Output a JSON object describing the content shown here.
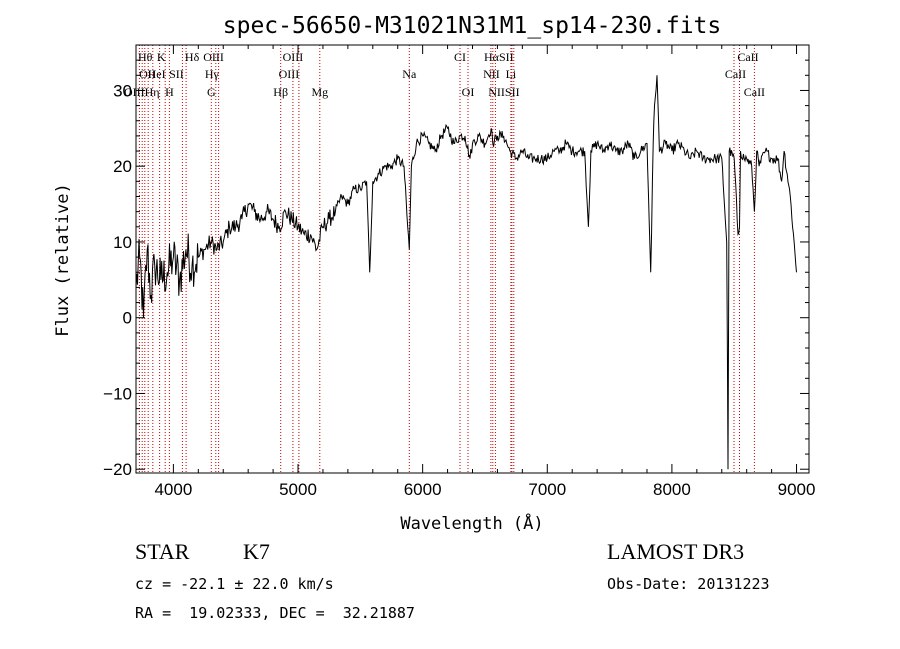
{
  "chart_data": {
    "type": "line",
    "title": "spec-56650-M31021N31M1_sp14-230.fits",
    "xlabel": "Wavelength (Å)",
    "ylabel": "Flux (relative)",
    "xlim": [
      3700,
      9100
    ],
    "ylim": [
      -20.5,
      36
    ],
    "xticks": [
      4000,
      5000,
      6000,
      7000,
      8000,
      9000
    ],
    "yticks": [
      -20,
      -10,
      0,
      10,
      20,
      30
    ],
    "spectrum": {
      "x": [
        3700,
        3730,
        3760,
        3790,
        3820,
        3850,
        3900,
        3950,
        4000,
        4050,
        4100,
        4150,
        4200,
        4250,
        4300,
        4350,
        4400,
        4450,
        4500,
        4550,
        4600,
        4650,
        4700,
        4750,
        4800,
        4850,
        4900,
        4950,
        5000,
        5050,
        5100,
        5150,
        5200,
        5250,
        5300,
        5350,
        5400,
        5450,
        5500,
        5550,
        5575,
        5600,
        5650,
        5700,
        5750,
        5800,
        5850,
        5880,
        5893,
        5910,
        5950,
        6000,
        6050,
        6100,
        6150,
        6200,
        6250,
        6300,
        6340,
        6380,
        6400,
        6450,
        6500,
        6550,
        6563,
        6600,
        6650,
        6700,
        6750,
        6800,
        6850,
        6900,
        6950,
        7000,
        7050,
        7100,
        7150,
        7200,
        7250,
        7300,
        7330,
        7350,
        7400,
        7450,
        7500,
        7550,
        7600,
        7650,
        7700,
        7750,
        7800,
        7830,
        7850,
        7860,
        7880,
        7900,
        7950,
        8000,
        8050,
        8100,
        8150,
        8200,
        8250,
        8300,
        8350,
        8400,
        8440,
        8450,
        8460,
        8500,
        8530,
        8542,
        8550,
        8580,
        8600,
        8640,
        8662,
        8680,
        8700,
        8750,
        8800,
        8850,
        8880,
        8900,
        8950,
        9000
      ],
      "y": [
        4,
        8,
        0,
        9,
        3,
        7,
        5,
        6,
        8,
        5,
        9,
        7,
        8,
        9,
        10,
        9,
        10,
        12,
        12,
        13,
        15,
        14,
        13,
        14,
        13,
        12,
        14,
        13,
        12,
        11,
        11,
        9,
        12,
        13,
        14,
        16,
        15,
        17,
        17,
        18,
        6,
        18,
        19,
        20,
        20,
        21,
        20,
        12,
        9,
        20,
        23,
        24,
        23,
        22,
        24,
        25,
        23,
        24,
        24,
        21,
        23,
        24,
        23,
        25,
        23,
        24,
        24,
        22,
        21,
        22,
        21,
        21,
        21,
        21,
        22,
        22,
        23,
        22,
        22,
        22,
        12,
        22,
        23,
        22,
        23,
        22,
        22,
        23,
        21,
        22,
        23,
        6,
        23,
        28,
        32,
        22,
        23,
        22,
        23,
        22,
        21,
        22,
        21,
        21,
        21,
        21,
        10,
        -20,
        22,
        21,
        11,
        12,
        22,
        21,
        21,
        20,
        14,
        22,
        20,
        22,
        21,
        21,
        18,
        22,
        16,
        6
      ]
    },
    "lines": [
      {
        "label": "Hθ",
        "wave": 3798,
        "row": 0,
        "dx": -3
      },
      {
        "label": "K",
        "wave": 3934,
        "row": 0,
        "dx": -4
      },
      {
        "label": "Hδ",
        "wave": 4102,
        "row": 0,
        "dx": 6
      },
      {
        "label": "OIII",
        "wave": 4363,
        "row": 0,
        "dx": -5
      },
      {
        "label": "OIII",
        "wave": 4959,
        "row": 0,
        "dx": 0
      },
      {
        "label": "CI",
        "wave": 6300,
        "row": 0,
        "dx": 0
      },
      {
        "label": "HαSII",
        "wave": 6563,
        "row": 0,
        "dx": 6
      },
      {
        "label": "CaII",
        "wave": 8498,
        "row": 0,
        "dx": 14
      },
      {
        "label": "OII",
        "wave": 3727,
        "row": 1,
        "dx": 8
      },
      {
        "label": "HeI",
        "wave": 3889,
        "row": 1,
        "dx": -3
      },
      {
        "label": "SII",
        "wave": 4072,
        "row": 1,
        "dx": -6
      },
      {
        "label": "Hγ",
        "wave": 4340,
        "row": 1,
        "dx": -4
      },
      {
        "label": "OIII",
        "wave": 4959,
        "row": 1,
        "dx": -4
      },
      {
        "label": "Na",
        "wave": 5893,
        "row": 1,
        "dx": 0
      },
      {
        "label": "NII",
        "wave": 6584,
        "row": 1,
        "dx": -4
      },
      {
        "label": "Li",
        "wave": 6708,
        "row": 1,
        "dx": 0
      },
      {
        "label": "CaII",
        "wave": 8542,
        "row": 1,
        "dx": -4
      },
      {
        "label": "OIIIHη",
        "wave": 3835,
        "row": 2,
        "dx": -11
      },
      {
        "label": "H",
        "wave": 3968,
        "row": 2,
        "dx": 0
      },
      {
        "label": "G",
        "wave": 4304,
        "row": 2,
        "dx": 0
      },
      {
        "label": "Hβ",
        "wave": 4861,
        "row": 2,
        "dx": 0
      },
      {
        "label": "Mg",
        "wave": 5175,
        "row": 2,
        "dx": 0
      },
      {
        "label": "OI",
        "wave": 6364,
        "row": 2,
        "dx": 0
      },
      {
        "label": "NIISII",
        "wave": 6716,
        "row": 2,
        "dx": -8
      },
      {
        "label": "CaII",
        "wave": 8662,
        "row": 2,
        "dx": 0
      }
    ],
    "line_waves": [
      3727,
      3750,
      3771,
      3798,
      3835,
      3889,
      3934,
      3968,
      4072,
      4102,
      4304,
      4340,
      4363,
      4861,
      4959,
      5007,
      5175,
      5893,
      6300,
      6364,
      6548,
      6563,
      6584,
      6708,
      6716,
      6731,
      8498,
      8542,
      8662
    ],
    "line_color": "#cc0000",
    "curve_color": "#000000"
  },
  "info": {
    "object_type": "STAR",
    "subclass": "K7",
    "survey": "LAMOST DR3",
    "cz": "cz = -22.1 ± 22.0 km/s",
    "obs_date": "Obs-Date: 20131223",
    "coords": "RA =  19.02333, DEC =  32.21887"
  }
}
